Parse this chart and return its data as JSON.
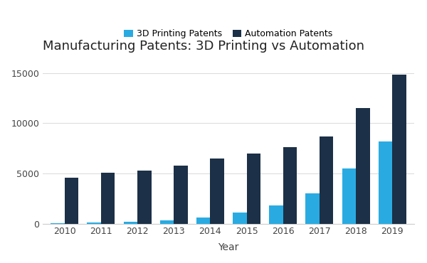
{
  "title": "Manufacturing Patents: 3D Printing vs Automation",
  "xlabel": "Year",
  "ylabel": "",
  "years": [
    2010,
    2011,
    2012,
    2013,
    2014,
    2015,
    2016,
    2017,
    2018,
    2019
  ],
  "printing_patents": [
    50,
    80,
    150,
    300,
    600,
    1100,
    1800,
    3000,
    5500,
    8200
  ],
  "automation_patents": [
    4600,
    5050,
    5300,
    5800,
    6500,
    7000,
    7600,
    8700,
    11500,
    14800
  ],
  "color_3d": "#29ABE2",
  "color_auto": "#1C3047",
  "bg_color": "#FFFFFF",
  "legend_labels": [
    "3D Printing Patents",
    "Automation Patents"
  ],
  "ylim": [
    0,
    16500
  ],
  "yticks": [
    0,
    5000,
    10000,
    15000
  ],
  "title_fontsize": 13,
  "axis_label_fontsize": 10,
  "tick_fontsize": 9,
  "legend_fontsize": 9,
  "bar_width": 0.38,
  "grid_color": "#DDDDDD"
}
